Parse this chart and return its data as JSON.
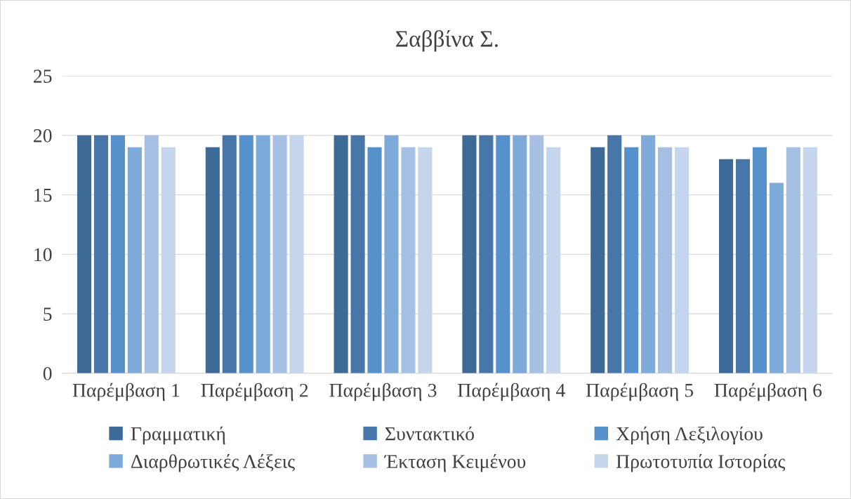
{
  "chart_data": {
    "type": "bar",
    "title": "Σαββίνα Σ.",
    "categories": [
      "Παρέμβαση 1",
      "Παρέμβαση 2",
      "Παρέμβαση 3",
      "Παρέμβαση 4",
      "Παρέμβαση 5",
      "Παρέμβαση 6"
    ],
    "series": [
      {
        "name": "Γραμματική",
        "color": "#3d6a96",
        "values": [
          20,
          19,
          20,
          20,
          19,
          18
        ]
      },
      {
        "name": "Συντακτικό",
        "color": "#4677a8",
        "values": [
          20,
          20,
          20,
          20,
          20,
          18
        ]
      },
      {
        "name": "Χρήση Λεξιλογίου",
        "color": "#5791cb",
        "values": [
          20,
          20,
          19,
          20,
          19,
          19
        ]
      },
      {
        "name": "Διαρθρωτικές Λέξεις",
        "color": "#7eaad9",
        "values": [
          19,
          20,
          20,
          20,
          20,
          16
        ]
      },
      {
        "name": "Έκταση Κειμένου",
        "color": "#a6c0e3",
        "values": [
          20,
          20,
          19,
          20,
          19,
          19
        ]
      },
      {
        "name": "Πρωτοτυπία Ιστορίας",
        "color": "#c5d5ec",
        "values": [
          19,
          20,
          19,
          19,
          19,
          19
        ]
      }
    ],
    "ylim": [
      0,
      25
    ],
    "yticks": [
      0,
      5,
      10,
      15,
      20,
      25
    ],
    "grid": "y",
    "legend": "bottom"
  }
}
